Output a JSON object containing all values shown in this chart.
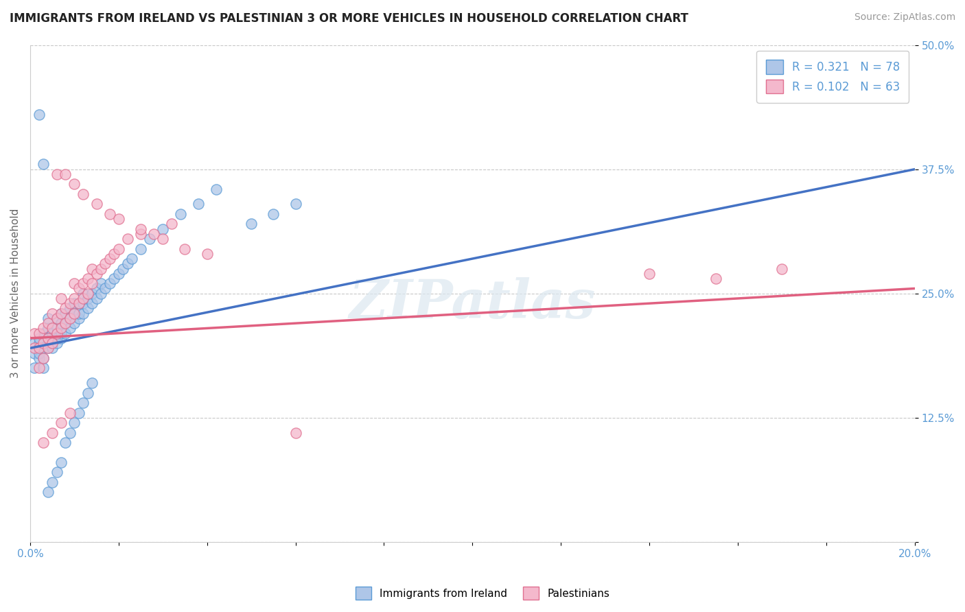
{
  "title": "IMMIGRANTS FROM IRELAND VS PALESTINIAN 3 OR MORE VEHICLES IN HOUSEHOLD CORRELATION CHART",
  "source_text": "Source: ZipAtlas.com",
  "ylabel": "3 or more Vehicles in Household",
  "xlim": [
    0.0,
    0.2
  ],
  "ylim": [
    0.0,
    0.5
  ],
  "xticks": [
    0.0,
    0.02,
    0.04,
    0.06,
    0.08,
    0.1,
    0.12,
    0.14,
    0.16,
    0.18,
    0.2
  ],
  "xticklabels": [
    "0.0%",
    "",
    "",
    "",
    "",
    "",
    "",
    "",
    "",
    "",
    "20.0%"
  ],
  "yticks": [
    0.0,
    0.125,
    0.25,
    0.375,
    0.5
  ],
  "yticklabels": [
    "",
    "12.5%",
    "25.0%",
    "37.5%",
    "50.0%"
  ],
  "series1_color": "#aec6e8",
  "series1_edge": "#5b9bd5",
  "series2_color": "#f4b8cc",
  "series2_edge": "#e07090",
  "trendline1_color": "#4472c4",
  "trendline2_color": "#e06080",
  "trendline_ext_color": "#a0b8a0",
  "r1": 0.321,
  "n1": 78,
  "r2": 0.102,
  "n2": 63,
  "legend1_label": "Immigrants from Ireland",
  "legend2_label": "Palestinians",
  "watermark": "ZIPatlas",
  "trendline1_x0": 0.0,
  "trendline1_y0": 0.195,
  "trendline1_x1": 0.2,
  "trendline1_y1": 0.375,
  "trendline2_x0": 0.0,
  "trendline2_y0": 0.205,
  "trendline2_x1": 0.2,
  "trendline2_y1": 0.255,
  "ireland_x": [
    0.001,
    0.001,
    0.001,
    0.002,
    0.002,
    0.002,
    0.002,
    0.003,
    0.003,
    0.003,
    0.003,
    0.004,
    0.004,
    0.004,
    0.004,
    0.005,
    0.005,
    0.005,
    0.006,
    0.006,
    0.006,
    0.006,
    0.007,
    0.007,
    0.007,
    0.007,
    0.008,
    0.008,
    0.008,
    0.009,
    0.009,
    0.009,
    0.01,
    0.01,
    0.01,
    0.011,
    0.011,
    0.011,
    0.012,
    0.012,
    0.012,
    0.013,
    0.013,
    0.014,
    0.014,
    0.015,
    0.015,
    0.016,
    0.016,
    0.017,
    0.018,
    0.019,
    0.02,
    0.021,
    0.022,
    0.023,
    0.025,
    0.027,
    0.03,
    0.034,
    0.038,
    0.042,
    0.05,
    0.055,
    0.06,
    0.002,
    0.003,
    0.004,
    0.005,
    0.006,
    0.007,
    0.008,
    0.009,
    0.01,
    0.011,
    0.012,
    0.013,
    0.014
  ],
  "ireland_y": [
    0.175,
    0.19,
    0.2,
    0.185,
    0.19,
    0.2,
    0.205,
    0.175,
    0.185,
    0.195,
    0.21,
    0.195,
    0.205,
    0.215,
    0.225,
    0.195,
    0.2,
    0.21,
    0.2,
    0.205,
    0.215,
    0.225,
    0.205,
    0.21,
    0.22,
    0.23,
    0.21,
    0.22,
    0.23,
    0.215,
    0.225,
    0.235,
    0.22,
    0.23,
    0.24,
    0.225,
    0.23,
    0.24,
    0.23,
    0.24,
    0.25,
    0.235,
    0.245,
    0.24,
    0.25,
    0.245,
    0.255,
    0.25,
    0.26,
    0.255,
    0.26,
    0.265,
    0.27,
    0.275,
    0.28,
    0.285,
    0.295,
    0.305,
    0.315,
    0.33,
    0.34,
    0.355,
    0.32,
    0.33,
    0.34,
    0.43,
    0.38,
    0.05,
    0.06,
    0.07,
    0.08,
    0.1,
    0.11,
    0.12,
    0.13,
    0.14,
    0.15,
    0.16
  ],
  "palest_x": [
    0.001,
    0.001,
    0.002,
    0.002,
    0.002,
    0.003,
    0.003,
    0.003,
    0.004,
    0.004,
    0.004,
    0.005,
    0.005,
    0.005,
    0.006,
    0.006,
    0.007,
    0.007,
    0.007,
    0.008,
    0.008,
    0.009,
    0.009,
    0.01,
    0.01,
    0.01,
    0.011,
    0.011,
    0.012,
    0.012,
    0.013,
    0.013,
    0.014,
    0.014,
    0.015,
    0.016,
    0.017,
    0.018,
    0.019,
    0.02,
    0.022,
    0.025,
    0.028,
    0.032,
    0.006,
    0.008,
    0.01,
    0.012,
    0.015,
    0.018,
    0.02,
    0.025,
    0.03,
    0.035,
    0.04,
    0.14,
    0.155,
    0.17,
    0.003,
    0.005,
    0.007,
    0.009,
    0.06
  ],
  "palest_y": [
    0.195,
    0.21,
    0.175,
    0.195,
    0.21,
    0.185,
    0.2,
    0.215,
    0.195,
    0.205,
    0.22,
    0.2,
    0.215,
    0.23,
    0.21,
    0.225,
    0.215,
    0.23,
    0.245,
    0.22,
    0.235,
    0.225,
    0.24,
    0.23,
    0.245,
    0.26,
    0.24,
    0.255,
    0.245,
    0.26,
    0.25,
    0.265,
    0.26,
    0.275,
    0.27,
    0.275,
    0.28,
    0.285,
    0.29,
    0.295,
    0.305,
    0.31,
    0.31,
    0.32,
    0.37,
    0.37,
    0.36,
    0.35,
    0.34,
    0.33,
    0.325,
    0.315,
    0.305,
    0.295,
    0.29,
    0.27,
    0.265,
    0.275,
    0.1,
    0.11,
    0.12,
    0.13,
    0.11
  ]
}
